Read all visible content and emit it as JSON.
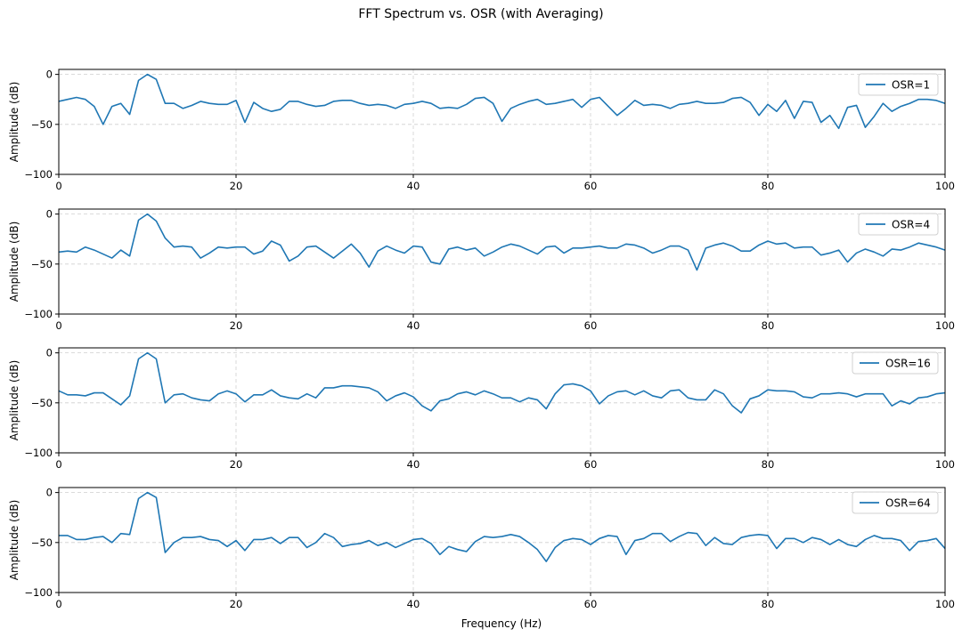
{
  "figure": {
    "title": "FFT Spectrum vs. OSR (with Averaging)",
    "xlabel": "Frequency (Hz)"
  },
  "chart_data": [
    {
      "type": "line",
      "ylabel": "Amplitude (dB)",
      "xlim": [
        0,
        100
      ],
      "ylim": [
        -100,
        5
      ],
      "xticks": [
        0,
        20,
        40,
        60,
        80,
        100
      ],
      "yticks": [
        0,
        -50,
        -100
      ],
      "grid": true,
      "legend_position": "right",
      "color": "#1f77b4",
      "series": [
        {
          "name": "OSR=1",
          "x": [
            0,
            1,
            2,
            3,
            4,
            5,
            6,
            7,
            8,
            9,
            10,
            11,
            12,
            13,
            14,
            15,
            16,
            17,
            18,
            19,
            20,
            21,
            22,
            23,
            24,
            25,
            26,
            27,
            28,
            29,
            30,
            31,
            32,
            33,
            34,
            35,
            36,
            37,
            38,
            39,
            40,
            41,
            42,
            43,
            44,
            45,
            46,
            47,
            48,
            49,
            50,
            51,
            52,
            53,
            54,
            55,
            56,
            57,
            58,
            59,
            60,
            61,
            62,
            63,
            64,
            65,
            66,
            67,
            68,
            69,
            70,
            71,
            72,
            73,
            74,
            75,
            76,
            77,
            78,
            79,
            80,
            81,
            82,
            83,
            84,
            85,
            86,
            87,
            88,
            89,
            90,
            91,
            92,
            93,
            94,
            95,
            96,
            97,
            98,
            99,
            100
          ],
          "y": [
            -27,
            -25,
            -23,
            -25,
            -32,
            -50,
            -32,
            -29,
            -40,
            -6,
            0,
            -5,
            -29,
            -29,
            -34,
            -31,
            -27,
            -29,
            -30,
            -30,
            -26,
            -48,
            -28,
            -34,
            -37,
            -35,
            -27,
            -27,
            -30,
            -32,
            -31,
            -27,
            -26,
            -26,
            -29,
            -31,
            -30,
            -31,
            -34,
            -30,
            -29,
            -27,
            -29,
            -34,
            -33,
            -34,
            -30,
            -24,
            -23,
            -29,
            -47,
            -34,
            -30,
            -27,
            -25,
            -30,
            -29,
            -27,
            -25,
            -33,
            -25,
            -23,
            -32,
            -41,
            -34,
            -26,
            -31,
            -30,
            -31,
            -34,
            -30,
            -29,
            -27,
            -29,
            -29,
            -28,
            -24,
            -23,
            -28,
            -41,
            -30,
            -37,
            -26,
            -44,
            -27,
            -28,
            -48,
            -41,
            -54,
            -33,
            -31,
            -53,
            -42,
            -29,
            -37,
            -32,
            -29,
            -25,
            -25,
            -26,
            -29
          ]
        }
      ]
    },
    {
      "type": "line",
      "ylabel": "Amplitude (dB)",
      "xlim": [
        0,
        100
      ],
      "ylim": [
        -100,
        5
      ],
      "xticks": [
        0,
        20,
        40,
        60,
        80,
        100
      ],
      "yticks": [
        0,
        -50,
        -100
      ],
      "grid": true,
      "legend_position": "right",
      "color": "#1f77b4",
      "series": [
        {
          "name": "OSR=4",
          "x": [
            0,
            1,
            2,
            3,
            4,
            5,
            6,
            7,
            8,
            9,
            10,
            11,
            12,
            13,
            14,
            15,
            16,
            17,
            18,
            19,
            20,
            21,
            22,
            23,
            24,
            25,
            26,
            27,
            28,
            29,
            30,
            31,
            32,
            33,
            34,
            35,
            36,
            37,
            38,
            39,
            40,
            41,
            42,
            43,
            44,
            45,
            46,
            47,
            48,
            49,
            50,
            51,
            52,
            53,
            54,
            55,
            56,
            57,
            58,
            59,
            60,
            61,
            62,
            63,
            64,
            65,
            66,
            67,
            68,
            69,
            70,
            71,
            72,
            73,
            74,
            75,
            76,
            77,
            78,
            79,
            80,
            81,
            82,
            83,
            84,
            85,
            86,
            87,
            88,
            89,
            90,
            91,
            92,
            93,
            94,
            95,
            96,
            97,
            98,
            99,
            100
          ],
          "y": [
            -38,
            -37,
            -38,
            -33,
            -36,
            -40,
            -44,
            -36,
            -42,
            -6,
            0,
            -7,
            -24,
            -33,
            -32,
            -33,
            -44,
            -39,
            -33,
            -34,
            -33,
            -33,
            -40,
            -37,
            -27,
            -31,
            -47,
            -42,
            -33,
            -32,
            -38,
            -44,
            -37,
            -30,
            -39,
            -53,
            -37,
            -32,
            -36,
            -39,
            -32,
            -33,
            -48,
            -50,
            -35,
            -33,
            -36,
            -34,
            -42,
            -38,
            -33,
            -30,
            -32,
            -36,
            -40,
            -33,
            -32,
            -39,
            -34,
            -34,
            -33,
            -32,
            -34,
            -34,
            -30,
            -31,
            -34,
            -39,
            -36,
            -32,
            -32,
            -36,
            -56,
            -34,
            -31,
            -29,
            -32,
            -37,
            -37,
            -31,
            -27,
            -30,
            -29,
            -34,
            -33,
            -33,
            -41,
            -39,
            -36,
            -48,
            -39,
            -35,
            -38,
            -42,
            -35,
            -36,
            -33,
            -29,
            -31,
            -33,
            -36
          ]
        }
      ]
    },
    {
      "type": "line",
      "ylabel": "Amplitude (dB)",
      "xlim": [
        0,
        100
      ],
      "ylim": [
        -100,
        5
      ],
      "xticks": [
        0,
        20,
        40,
        60,
        80,
        100
      ],
      "yticks": [
        0,
        -50,
        -100
      ],
      "grid": true,
      "legend_position": "right",
      "color": "#1f77b4",
      "series": [
        {
          "name": "OSR=16",
          "x": [
            0,
            1,
            2,
            3,
            4,
            5,
            6,
            7,
            8,
            9,
            10,
            11,
            12,
            13,
            14,
            15,
            16,
            17,
            18,
            19,
            20,
            21,
            22,
            23,
            24,
            25,
            26,
            27,
            28,
            29,
            30,
            31,
            32,
            33,
            34,
            35,
            36,
            37,
            38,
            39,
            40,
            41,
            42,
            43,
            44,
            45,
            46,
            47,
            48,
            49,
            50,
            51,
            52,
            53,
            54,
            55,
            56,
            57,
            58,
            59,
            60,
            61,
            62,
            63,
            64,
            65,
            66,
            67,
            68,
            69,
            70,
            71,
            72,
            73,
            74,
            75,
            76,
            77,
            78,
            79,
            80,
            81,
            82,
            83,
            84,
            85,
            86,
            87,
            88,
            89,
            90,
            91,
            92,
            93,
            94,
            95,
            96,
            97,
            98,
            99,
            100
          ],
          "y": [
            -38,
            -42,
            -42,
            -43,
            -40,
            -40,
            -46,
            -52,
            -43,
            -6,
            0,
            -6,
            -50,
            -42,
            -41,
            -45,
            -47,
            -48,
            -41,
            -38,
            -41,
            -49,
            -42,
            -42,
            -37,
            -43,
            -45,
            -46,
            -41,
            -45,
            -35,
            -35,
            -33,
            -33,
            -34,
            -35,
            -39,
            -48,
            -43,
            -40,
            -44,
            -53,
            -58,
            -48,
            -46,
            -41,
            -39,
            -42,
            -38,
            -41,
            -45,
            -45,
            -49,
            -45,
            -47,
            -56,
            -41,
            -32,
            -31,
            -33,
            -38,
            -51,
            -43,
            -39,
            -38,
            -42,
            -38,
            -43,
            -45,
            -38,
            -37,
            -45,
            -47,
            -47,
            -37,
            -41,
            -53,
            -60,
            -46,
            -43,
            -37,
            -38,
            -38,
            -39,
            -44,
            -45,
            -41,
            -41,
            -40,
            -41,
            -44,
            -41,
            -41,
            -41,
            -53,
            -48,
            -51,
            -45,
            -44,
            -41,
            -40
          ]
        }
      ]
    },
    {
      "type": "line",
      "ylabel": "Amplitude (dB)",
      "xlim": [
        0,
        100
      ],
      "ylim": [
        -100,
        5
      ],
      "xticks": [
        0,
        20,
        40,
        60,
        80,
        100
      ],
      "yticks": [
        0,
        -50,
        -100
      ],
      "grid": true,
      "legend_position": "right",
      "color": "#1f77b4",
      "series": [
        {
          "name": "OSR=64",
          "x": [
            0,
            1,
            2,
            3,
            4,
            5,
            6,
            7,
            8,
            9,
            10,
            11,
            12,
            13,
            14,
            15,
            16,
            17,
            18,
            19,
            20,
            21,
            22,
            23,
            24,
            25,
            26,
            27,
            28,
            29,
            30,
            31,
            32,
            33,
            34,
            35,
            36,
            37,
            38,
            39,
            40,
            41,
            42,
            43,
            44,
            45,
            46,
            47,
            48,
            49,
            50,
            51,
            52,
            53,
            54,
            55,
            56,
            57,
            58,
            59,
            60,
            61,
            62,
            63,
            64,
            65,
            66,
            67,
            68,
            69,
            70,
            71,
            72,
            73,
            74,
            75,
            76,
            77,
            78,
            79,
            80,
            81,
            82,
            83,
            84,
            85,
            86,
            87,
            88,
            89,
            90,
            91,
            92,
            93,
            94,
            95,
            96,
            97,
            98,
            99,
            100
          ],
          "y": [
            -43,
            -43,
            -47,
            -47,
            -45,
            -44,
            -50,
            -41,
            -42,
            -6,
            0,
            -5,
            -60,
            -50,
            -45,
            -45,
            -44,
            -47,
            -48,
            -54,
            -48,
            -58,
            -47,
            -47,
            -45,
            -51,
            -45,
            -45,
            -55,
            -50,
            -41,
            -45,
            -54,
            -52,
            -51,
            -48,
            -53,
            -50,
            -55,
            -51,
            -47,
            -46,
            -51,
            -62,
            -54,
            -57,
            -59,
            -49,
            -44,
            -45,
            -44,
            -42,
            -44,
            -50,
            -57,
            -69,
            -55,
            -48,
            -46,
            -47,
            -52,
            -46,
            -43,
            -44,
            -62,
            -48,
            -46,
            -41,
            -41,
            -49,
            -44,
            -40,
            -41,
            -53,
            -45,
            -51,
            -52,
            -45,
            -43,
            -42,
            -43,
            -56,
            -46,
            -46,
            -50,
            -45,
            -47,
            -52,
            -47,
            -52,
            -54,
            -47,
            -43,
            -46,
            -46,
            -48,
            -58,
            -49,
            -48,
            -46,
            -56
          ]
        }
      ]
    }
  ]
}
